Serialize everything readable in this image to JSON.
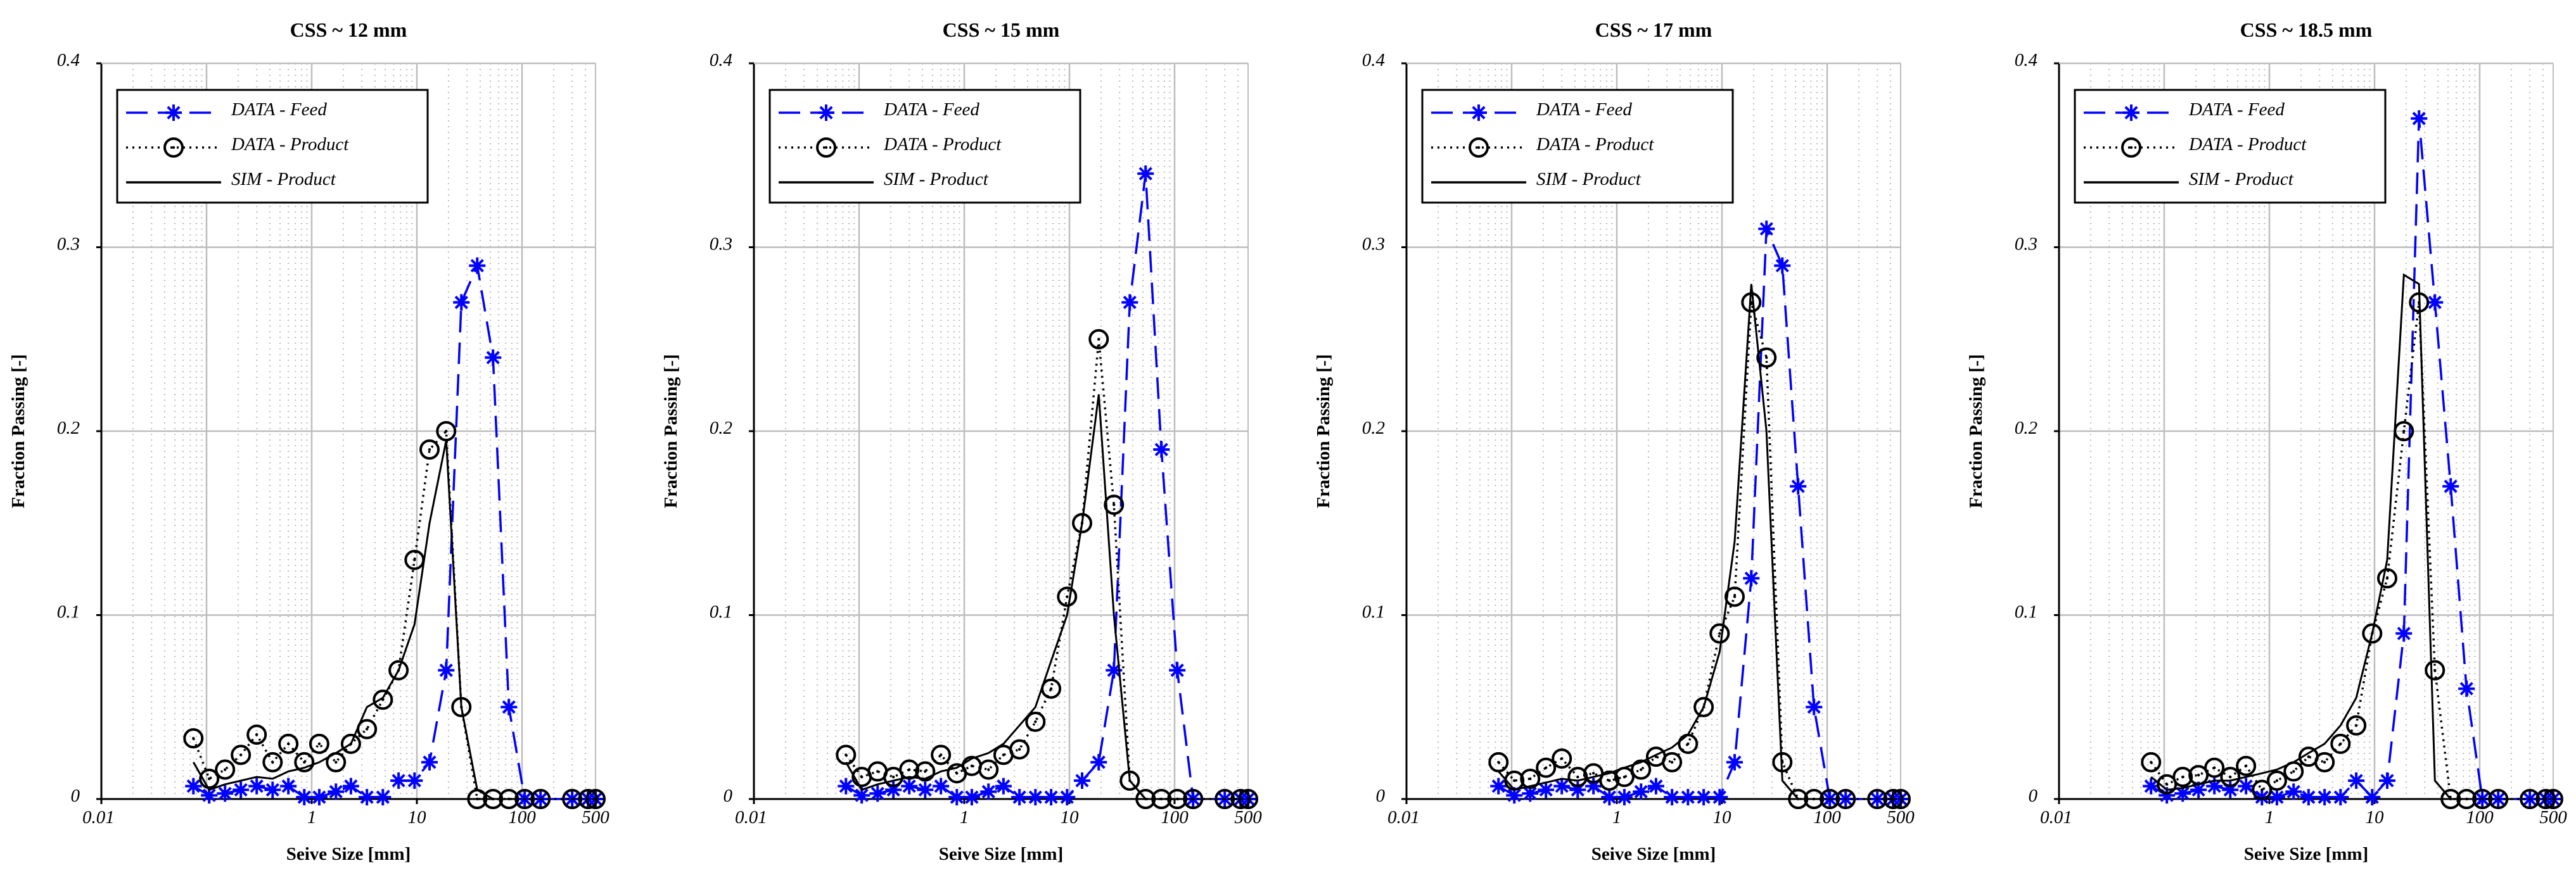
{
  "colors": {
    "feed": "#0000ff",
    "product": "#000000",
    "sim": "#000000",
    "grid": "#bdbdbd"
  },
  "shared": {
    "xlabel": "Seive Size [mm]",
    "ylabel": "Fraction Passing [-]",
    "x_ticks": [
      "0.01",
      "1",
      "10",
      "100",
      "500"
    ],
    "x_tick_values": [
      0.01,
      1,
      10,
      100,
      500
    ],
    "y_ticks": [
      "0",
      "0.1",
      "0.2",
      "0.3",
      "0.4"
    ],
    "y_tick_values": [
      0,
      0.1,
      0.2,
      0.3,
      0.4
    ],
    "legend": [
      "DATA - Feed",
      "DATA - Product",
      "SIM - Product"
    ],
    "legend_placement": "top-left"
  },
  "chart_data": [
    {
      "type": "line",
      "title": "CSS ~ 12 mm",
      "xlabel": "Seive Size [mm]",
      "ylabel": "Fraction Passing [-]",
      "xscale": "log",
      "xlim": [
        0.01,
        500
      ],
      "ylim": [
        0,
        0.4
      ],
      "grid": true,
      "series": [
        {
          "name": "DATA - Feed",
          "style": "dashed-asterisk",
          "x": [
            0.075,
            0.106,
            0.15,
            0.212,
            0.3,
            0.425,
            0.6,
            0.85,
            1.18,
            1.7,
            2.36,
            3.35,
            4.75,
            6.7,
            9.5,
            13.2,
            19,
            26.5,
            37.5,
            53,
            75,
            106,
            150,
            300,
            425,
            500
          ],
          "y": [
            0.007,
            0.002,
            0.003,
            0.005,
            0.007,
            0.005,
            0.007,
            0.001,
            0.001,
            0.004,
            0.007,
            0.001,
            0.001,
            0.01,
            0.01,
            0.02,
            0.07,
            0.27,
            0.29,
            0.24,
            0.05,
            0,
            0,
            0,
            0,
            0
          ]
        },
        {
          "name": "DATA - Product",
          "style": "dotted-circle",
          "x": [
            0.075,
            0.106,
            0.15,
            0.212,
            0.3,
            0.425,
            0.6,
            0.85,
            1.18,
            1.7,
            2.36,
            3.35,
            4.75,
            6.7,
            9.5,
            13.2,
            19,
            26.5,
            37.5,
            53,
            75,
            106,
            150,
            300,
            425,
            500
          ],
          "y": [
            0.033,
            0.011,
            0.016,
            0.024,
            0.035,
            0.02,
            0.03,
            0.02,
            0.03,
            0.02,
            0.03,
            0.038,
            0.054,
            0.07,
            0.13,
            0.19,
            0.2,
            0.05,
            0,
            0,
            0,
            0,
            0,
            0,
            0,
            0
          ]
        },
        {
          "name": "SIM - Product",
          "style": "solid",
          "x": [
            0.075,
            0.106,
            0.15,
            0.212,
            0.3,
            0.425,
            0.6,
            0.85,
            1.18,
            1.7,
            2.36,
            3.35,
            4.75,
            6.7,
            9.5,
            13.2,
            19,
            26.5,
            37.5,
            53
          ],
          "y": [
            0.02,
            0.005,
            0.008,
            0.01,
            0.012,
            0.011,
            0.015,
            0.017,
            0.02,
            0.025,
            0.03,
            0.05,
            0.055,
            0.07,
            0.095,
            0.15,
            0.195,
            0.05,
            0.005,
            0
          ]
        }
      ]
    },
    {
      "type": "line",
      "title": "CSS ~ 15 mm",
      "xlabel": "Seive Size [mm]",
      "ylabel": "Fraction Passing [-]",
      "xscale": "log",
      "xlim": [
        0.01,
        500
      ],
      "ylim": [
        0,
        0.4
      ],
      "grid": true,
      "series": [
        {
          "name": "DATA - Feed",
          "style": "dashed-asterisk",
          "x": [
            0.075,
            0.106,
            0.15,
            0.212,
            0.3,
            0.425,
            0.6,
            0.85,
            1.18,
            1.7,
            2.36,
            3.35,
            4.75,
            6.7,
            9.5,
            13.2,
            19,
            26.5,
            37.5,
            53,
            75,
            106,
            150,
            300,
            425,
            500
          ],
          "y": [
            0.007,
            0.002,
            0.003,
            0.005,
            0.007,
            0.005,
            0.007,
            0.001,
            0.001,
            0.004,
            0.007,
            0.001,
            0.001,
            0.001,
            0.001,
            0.01,
            0.02,
            0.07,
            0.27,
            0.34,
            0.19,
            0.07,
            0,
            0,
            0,
            0
          ]
        },
        {
          "name": "DATA - Product",
          "style": "dotted-circle",
          "x": [
            0.075,
            0.106,
            0.15,
            0.212,
            0.3,
            0.425,
            0.6,
            0.85,
            1.18,
            1.7,
            2.36,
            3.35,
            4.75,
            6.7,
            9.5,
            13.2,
            19,
            26.5,
            37.5,
            53,
            75,
            106,
            150,
            300,
            425,
            500
          ],
          "y": [
            0.024,
            0.012,
            0.015,
            0.012,
            0.016,
            0.015,
            0.024,
            0.014,
            0.018,
            0.016,
            0.024,
            0.027,
            0.042,
            0.06,
            0.11,
            0.15,
            0.25,
            0.16,
            0.01,
            0,
            0,
            0,
            0,
            0,
            0,
            0
          ]
        },
        {
          "name": "SIM - Product",
          "style": "solid",
          "x": [
            0.075,
            0.106,
            0.15,
            0.212,
            0.3,
            0.425,
            0.6,
            0.85,
            1.18,
            1.7,
            2.36,
            3.35,
            4.75,
            6.7,
            9.5,
            13.2,
            19,
            26.5,
            37.5,
            53,
            75
          ],
          "y": [
            0.02,
            0.005,
            0.008,
            0.01,
            0.012,
            0.011,
            0.015,
            0.017,
            0.022,
            0.025,
            0.03,
            0.04,
            0.05,
            0.075,
            0.1,
            0.15,
            0.22,
            0.1,
            0.01,
            0,
            0
          ]
        }
      ]
    },
    {
      "type": "line",
      "title": "CSS ~ 17 mm",
      "xlabel": "Seive Size [mm]",
      "ylabel": "Fraction Passing [-]",
      "xscale": "log",
      "xlim": [
        0.01,
        500
      ],
      "ylim": [
        0,
        0.4
      ],
      "grid": true,
      "series": [
        {
          "name": "DATA - Feed",
          "style": "dashed-asterisk",
          "x": [
            0.075,
            0.106,
            0.15,
            0.212,
            0.3,
            0.425,
            0.6,
            0.85,
            1.18,
            1.7,
            2.36,
            3.35,
            4.75,
            6.7,
            9.5,
            13.2,
            19,
            26.5,
            37.5,
            53,
            75,
            106,
            150,
            300,
            425,
            500
          ],
          "y": [
            0.007,
            0.002,
            0.003,
            0.005,
            0.007,
            0.005,
            0.007,
            0.001,
            0.001,
            0.004,
            0.007,
            0.001,
            0.001,
            0.001,
            0.001,
            0.02,
            0.12,
            0.31,
            0.29,
            0.17,
            0.05,
            0,
            0,
            0,
            0,
            0
          ]
        },
        {
          "name": "DATA - Product",
          "style": "dotted-circle",
          "x": [
            0.075,
            0.106,
            0.15,
            0.212,
            0.3,
            0.425,
            0.6,
            0.85,
            1.18,
            1.7,
            2.36,
            3.35,
            4.75,
            6.7,
            9.5,
            13.2,
            19,
            26.5,
            37.5,
            53,
            75,
            106,
            150,
            300,
            425,
            500
          ],
          "y": [
            0.02,
            0.01,
            0.011,
            0.017,
            0.022,
            0.012,
            0.014,
            0.01,
            0.012,
            0.016,
            0.023,
            0.02,
            0.03,
            0.05,
            0.09,
            0.11,
            0.27,
            0.24,
            0.02,
            0,
            0,
            0,
            0,
            0,
            0,
            0
          ]
        },
        {
          "name": "SIM - Product",
          "style": "solid",
          "x": [
            0.075,
            0.106,
            0.15,
            0.212,
            0.3,
            0.425,
            0.6,
            0.85,
            1.18,
            1.7,
            2.36,
            3.35,
            4.75,
            6.7,
            9.5,
            13.2,
            19,
            26.5,
            37.5,
            53
          ],
          "y": [
            0.015,
            0.005,
            0.007,
            0.009,
            0.011,
            0.01,
            0.012,
            0.014,
            0.017,
            0.02,
            0.024,
            0.028,
            0.035,
            0.05,
            0.08,
            0.14,
            0.28,
            0.2,
            0.01,
            0
          ]
        }
      ]
    },
    {
      "type": "line",
      "title": "CSS ~ 18.5 mm",
      "xlabel": "Seive Size [mm]",
      "ylabel": "Fraction Passing [-]",
      "xscale": "log",
      "xlim": [
        0.01,
        500
      ],
      "ylim": [
        0,
        0.4
      ],
      "grid": true,
      "series": [
        {
          "name": "DATA - Feed",
          "style": "dashed-asterisk",
          "x": [
            0.075,
            0.106,
            0.15,
            0.212,
            0.3,
            0.425,
            0.6,
            0.85,
            1.18,
            1.7,
            2.36,
            3.35,
            4.75,
            6.7,
            9.5,
            13.2,
            19,
            26.5,
            37.5,
            53,
            75,
            106,
            150,
            300,
            425,
            500
          ],
          "y": [
            0.007,
            0.002,
            0.003,
            0.005,
            0.007,
            0.005,
            0.007,
            0.001,
            0.001,
            0.004,
            0.001,
            0.001,
            0.001,
            0.01,
            0.001,
            0.01,
            0.09,
            0.37,
            0.27,
            0.17,
            0.06,
            0,
            0,
            0,
            0,
            0
          ]
        },
        {
          "name": "DATA - Product",
          "style": "dotted-circle",
          "x": [
            0.075,
            0.106,
            0.15,
            0.212,
            0.3,
            0.425,
            0.6,
            0.85,
            1.18,
            1.7,
            2.36,
            3.35,
            4.75,
            6.7,
            9.5,
            13.2,
            19,
            26.5,
            37.5,
            53,
            75,
            106,
            150,
            300,
            425,
            500
          ],
          "y": [
            0.02,
            0.008,
            0.012,
            0.013,
            0.017,
            0.012,
            0.018,
            0.005,
            0.01,
            0.015,
            0.023,
            0.02,
            0.03,
            0.04,
            0.09,
            0.12,
            0.2,
            0.27,
            0.07,
            0,
            0,
            0,
            0,
            0,
            0,
            0
          ]
        },
        {
          "name": "SIM - Product",
          "style": "solid",
          "x": [
            0.075,
            0.106,
            0.15,
            0.212,
            0.3,
            0.425,
            0.6,
            0.85,
            1.18,
            1.7,
            2.36,
            3.35,
            4.75,
            6.7,
            9.5,
            13.2,
            19,
            26.5,
            37.5,
            53
          ],
          "y": [
            0.012,
            0.005,
            0.006,
            0.008,
            0.01,
            0.01,
            0.012,
            0.014,
            0.016,
            0.02,
            0.025,
            0.03,
            0.04,
            0.055,
            0.09,
            0.13,
            0.285,
            0.28,
            0.01,
            0
          ]
        }
      ]
    }
  ]
}
